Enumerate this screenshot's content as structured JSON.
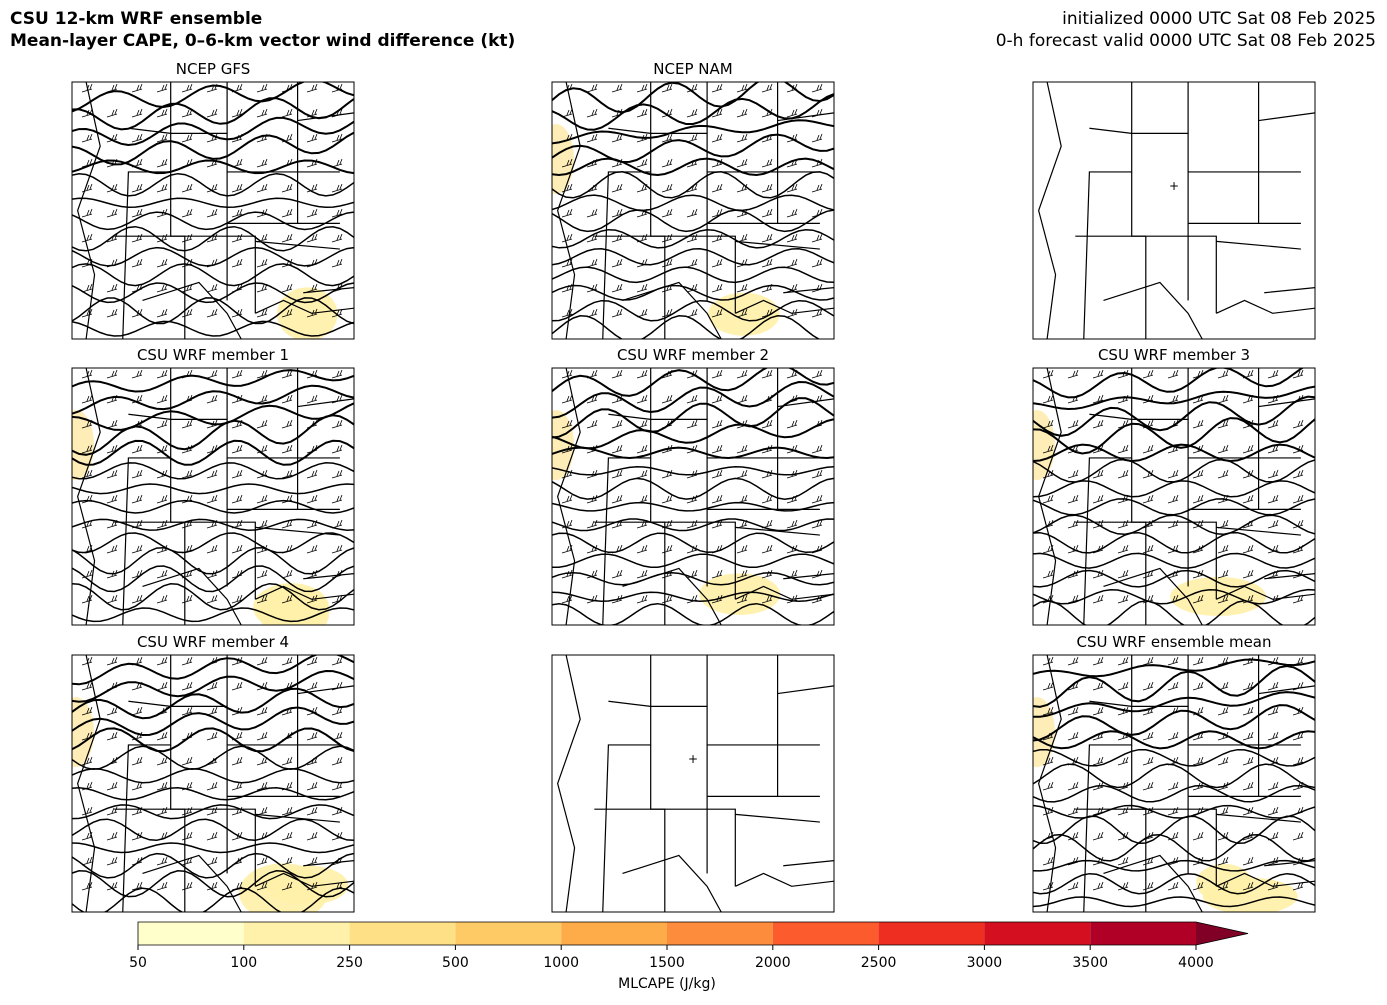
{
  "header": {
    "title_lines": [
      "CSU 12-km WRF ensemble",
      "Mean-layer CAPE, 0–6-km vector wind difference (kt)"
    ],
    "valid_lines": [
      "initialized 0000 UTC Sat 08 Feb 2025",
      "0-h forecast valid 0000 UTC Sat 08 Feb 2025"
    ]
  },
  "panel_titles": [
    "NCEP GFS",
    "NCEP NAM",
    "CSU WRF member 1",
    "CSU WRF member 2",
    "CSU WRF member 3",
    "CSU WRF member 4",
    "CSU WRF ensemble mean"
  ],
  "colorbar": {
    "ticks": [
      50,
      100,
      250,
      500,
      1000,
      1500,
      2000,
      2500,
      3000,
      3500,
      4000
    ],
    "colors": [
      "#ffffcc",
      "#fff1a9",
      "#fee187",
      "#feca66",
      "#feab49",
      "#fd8c3c",
      "#fc5b2e",
      "#ed2e21",
      "#d41020",
      "#b00026",
      "#800026"
    ],
    "label": "MLCAPE (J/kg)"
  }
}
